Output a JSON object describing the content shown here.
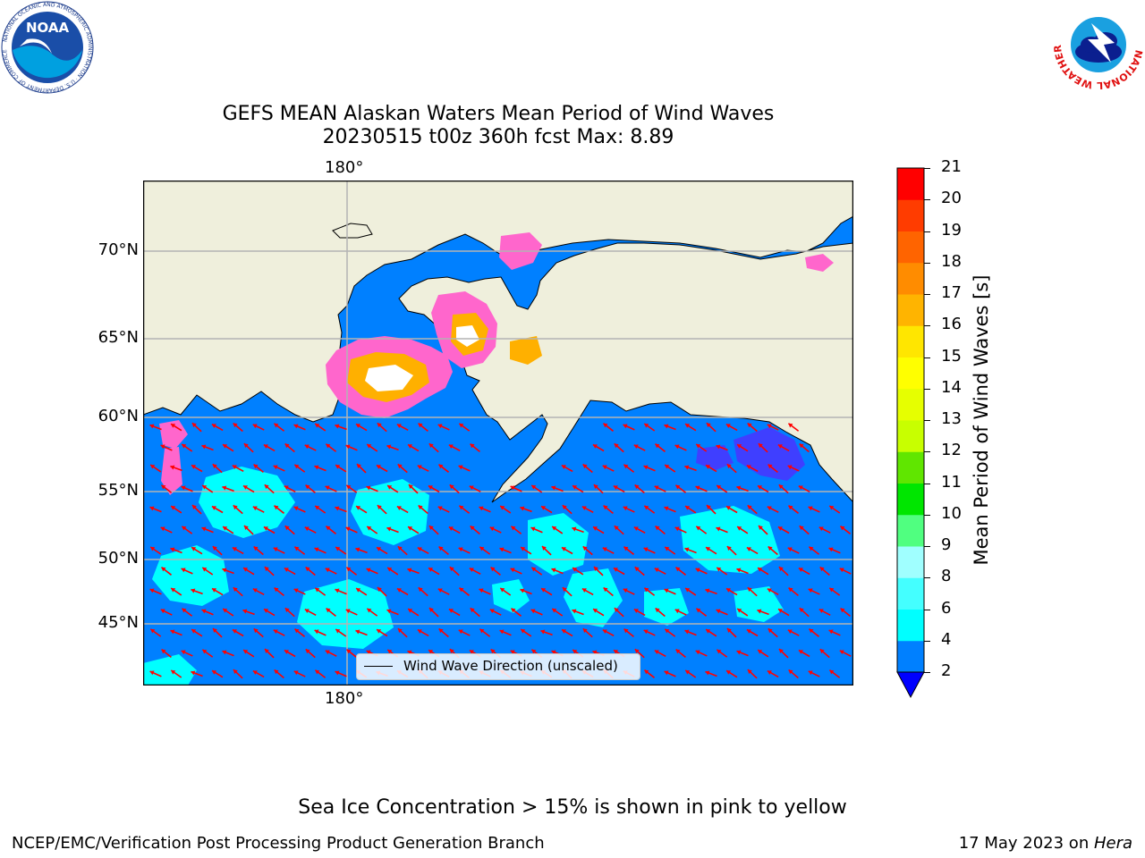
{
  "title": {
    "line1": "GEFS MEAN Alaskan Waters Mean Period of Wind Waves",
    "line2": "20230515 t00z 360h fcst   Max: 8.89"
  },
  "logos": {
    "noaa_text": "NOAA",
    "noaa_ring": "NATIONAL OCEANIC AND ATMOSPHERIC ADMINISTRATION · U.S. DEPARTMENT OF COMMERCE",
    "nws_ring": "NATIONAL WEATHER SERVICE"
  },
  "map": {
    "lon_label_top": "180°",
    "lon_label_bottom": "180°",
    "lat_labels": [
      "70°N",
      "65°N",
      "60°N",
      "55°N",
      "50°N",
      "45°N"
    ],
    "legend_label": "Wind Wave Direction (unscaled)",
    "colors": {
      "land": "#efefdc",
      "ocean_2_4": "#0080ff",
      "ocean_4_6": "#00ffff",
      "ice_edge": "#ff66cc",
      "ice_warm": "#ffb000",
      "ice_low": "#3f3fff",
      "arrow": "#ff0000",
      "grid": "#b4b4b4"
    }
  },
  "colorbar": {
    "label": "Mean Period of Wind Waves [s]",
    "ticks": [
      "21",
      "20",
      "19",
      "18",
      "17",
      "16",
      "15",
      "14",
      "13",
      "12",
      "11",
      "10",
      "9",
      "8",
      "6",
      "4",
      "2"
    ],
    "colors": [
      "#0080ff",
      "#00ffff",
      "#44ffff",
      "#a0ffff",
      "#50ff80",
      "#00e600",
      "#60e600",
      "#c8ff00",
      "#e6ff00",
      "#ffff00",
      "#ffe600",
      "#ffb400",
      "#ff8c00",
      "#ff6400",
      "#ff3c00",
      "#ff0000"
    ],
    "under_color": "#0000ff"
  },
  "note": "Sea Ice Concentration > 15% is shown in pink to yellow",
  "footer": {
    "left": "NCEP/EMC/Verification Post Processing Product Generation Branch",
    "right_date": "17 May 2023 on ",
    "right_host": "Hera"
  }
}
